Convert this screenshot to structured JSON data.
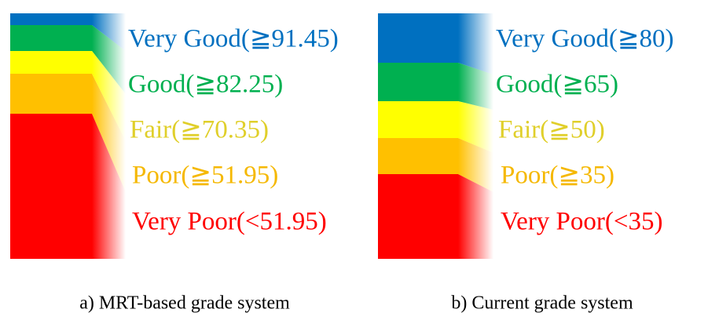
{
  "panels": [
    {
      "caption": "a) MRT-based grade system",
      "grades": [
        "Very Good(≧91.45)",
        "Good(≧82.25)",
        "Fair(≧70.35)",
        "Poor(≧51.95)",
        "Very Poor(<51.95)"
      ]
    },
    {
      "caption": "b) Current grade system",
      "grades": [
        "Very Good(≧80)",
        "Good(≧65)",
        "Fair(≧50)",
        "Poor(≧35)",
        "Very Poor(<35)"
      ]
    }
  ]
}
